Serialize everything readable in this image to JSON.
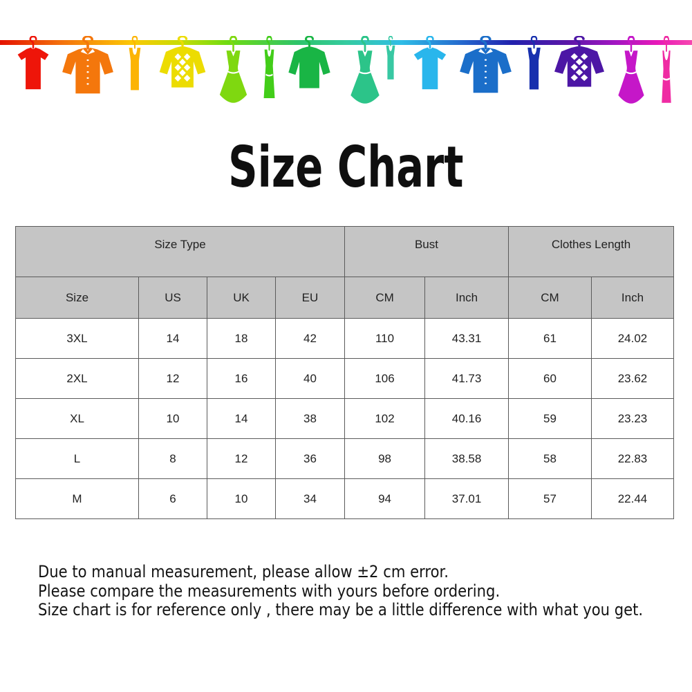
{
  "banner": {
    "items": [
      {
        "icon": "tshirt-icon",
        "garment": "tshirt",
        "color": "#ee1509"
      },
      {
        "icon": "shirt-icon",
        "garment": "shirt",
        "color": "#f4770c"
      },
      {
        "icon": "tank-top-icon",
        "garment": "tank",
        "color": "#fcb405"
      },
      {
        "icon": "argyle-sweater-icon",
        "garment": "argyle",
        "color": "#ecdc02"
      },
      {
        "icon": "dress-icon",
        "garment": "dress",
        "color": "#7fd810"
      },
      {
        "icon": "tank-dress-icon",
        "garment": "tankdress",
        "color": "#42cd19"
      },
      {
        "icon": "sweater-icon",
        "garment": "sweater",
        "color": "#19b545"
      },
      {
        "icon": "dress-icon",
        "garment": "dress",
        "color": "#2cc489"
      },
      {
        "icon": "tank-top-icon",
        "garment": "tank",
        "color": "#38c8a3"
      },
      {
        "icon": "tshirt-icon",
        "garment": "tshirt",
        "color": "#29b6ec"
      },
      {
        "icon": "shirt-icon",
        "garment": "shirt",
        "color": "#1b6ec9"
      },
      {
        "icon": "tank-top-icon",
        "garment": "tank",
        "color": "#1730ae"
      },
      {
        "icon": "argyle-sweater-icon",
        "garment": "argyle",
        "color": "#4c16a5"
      },
      {
        "icon": "dress-icon",
        "garment": "dress",
        "color": "#c517c8"
      },
      {
        "icon": "camisole-icon",
        "garment": "cami",
        "color": "#ef2ba3"
      }
    ]
  },
  "title": "Size Chart",
  "table": {
    "header_bg": "#c5c5c5",
    "border_color": "#5a5a5a",
    "group_headers": [
      {
        "label": "Size Type",
        "span": 4
      },
      {
        "label": "Bust",
        "span": 2
      },
      {
        "label": "Clothes Length",
        "span": 2
      }
    ],
    "column_headers": [
      "Size",
      "US",
      "UK",
      "EU",
      "CM",
      "Inch",
      "CM",
      "Inch"
    ]
  },
  "chart_data": {
    "type": "table",
    "title": "Size Chart",
    "columns": [
      "Size",
      "US",
      "UK",
      "EU",
      "Bust CM",
      "Bust Inch",
      "Clothes Length CM",
      "Clothes Length Inch"
    ],
    "rows": [
      [
        "3XL",
        "14",
        "18",
        "42",
        "110",
        "43.31",
        "61",
        "24.02"
      ],
      [
        "2XL",
        "12",
        "16",
        "40",
        "106",
        "41.73",
        "60",
        "23.62"
      ],
      [
        "XL",
        "10",
        "14",
        "38",
        "102",
        "40.16",
        "59",
        "23.23"
      ],
      [
        "L",
        "8",
        "12",
        "36",
        "98",
        "38.58",
        "58",
        "22.83"
      ],
      [
        "M",
        "6",
        "10",
        "34",
        "94",
        "37.01",
        "57",
        "22.44"
      ]
    ]
  },
  "notes": [
    "Due to manual measurement, please allow ±2 cm error.",
    "Please compare the measurements with yours before ordering.",
    "Size chart is for reference only , there may be a little difference with what you get."
  ]
}
